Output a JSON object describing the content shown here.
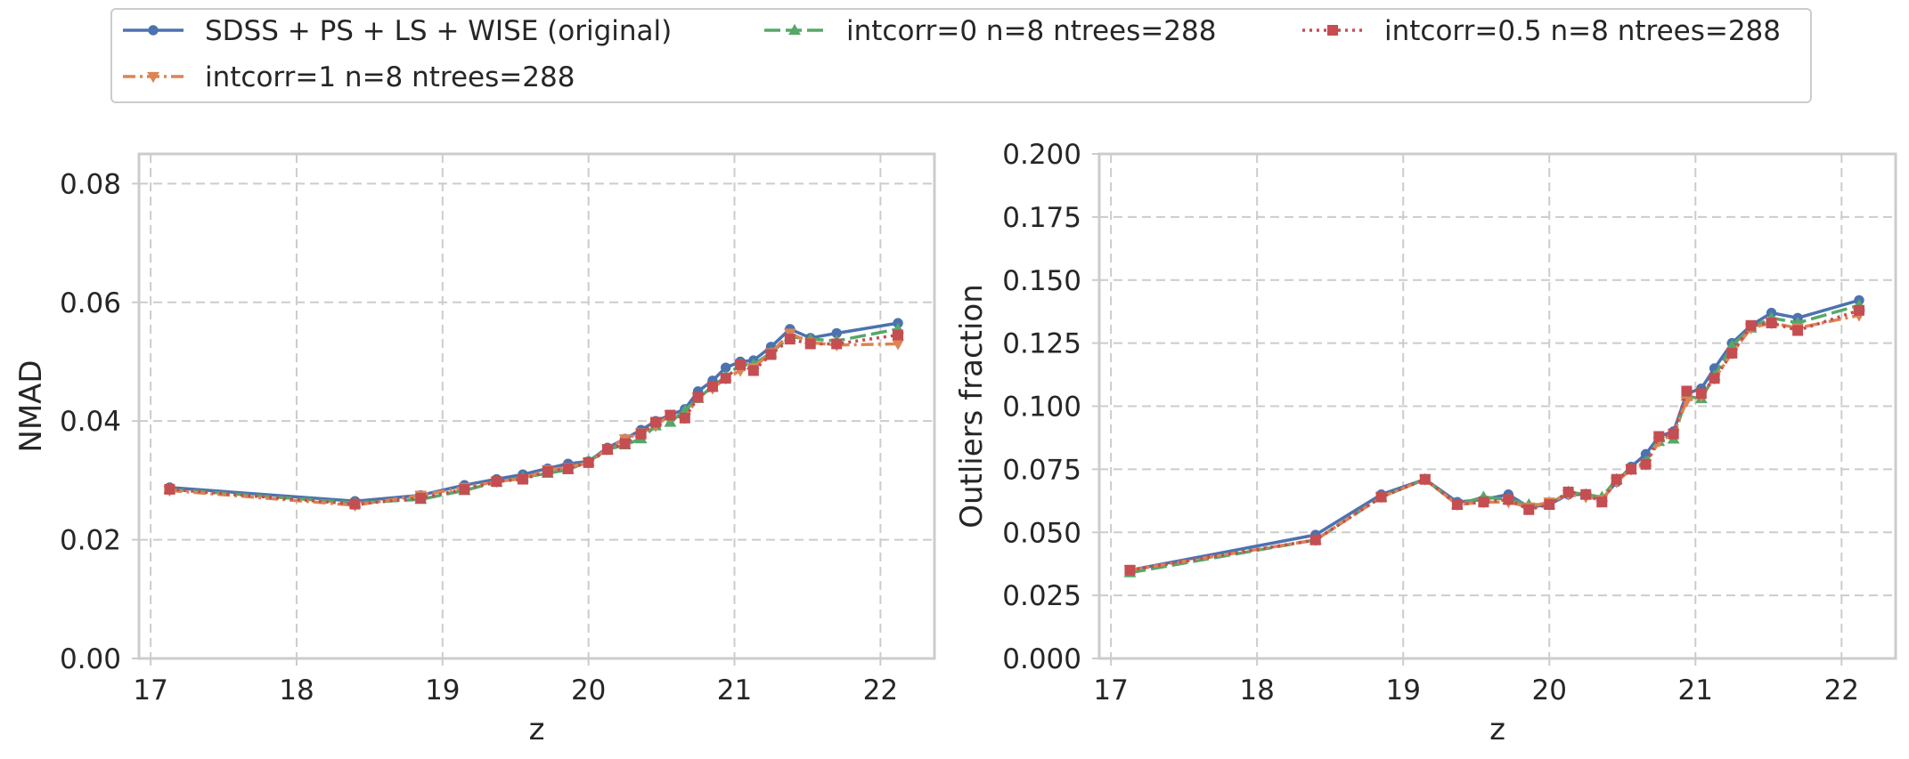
{
  "legend": {
    "entries": [
      {
        "label": "SDSS + PS + LS + WISE (original)",
        "series": 0
      },
      {
        "label": "intcorr=0 n=8 ntrees=288",
        "series": 1
      },
      {
        "label": "intcorr=0.5 n=8 ntrees=288",
        "series": 3
      },
      {
        "label": "intcorr=1 n=8 ntrees=288",
        "series": 2
      }
    ]
  },
  "series_styles": [
    {
      "color": "#4c72b0",
      "marker": "circle",
      "dash": "solid"
    },
    {
      "color": "#55a868",
      "marker": "triangle-up",
      "dash": "dash"
    },
    {
      "color": "#dd8452",
      "marker": "triangle-down",
      "dash": "dashdot"
    },
    {
      "color": "#c44e52",
      "marker": "square",
      "dash": "dot"
    }
  ],
  "chart_data": [
    {
      "type": "line",
      "xlabel": "z",
      "ylabel": "NMAD",
      "xlim": [
        16.92,
        22.37
      ],
      "ylim": [
        0.0,
        0.085
      ],
      "xticks": [
        "17",
        "18",
        "19",
        "20",
        "21",
        "22"
      ],
      "yticks": [
        "0.00",
        "0.02",
        "0.04",
        "0.06",
        "0.08"
      ],
      "grid": true,
      "x": [
        17.13,
        18.4,
        18.85,
        19.15,
        19.37,
        19.55,
        19.72,
        19.86,
        20.0,
        20.13,
        20.25,
        20.36,
        20.46,
        20.56,
        20.66,
        20.75,
        20.85,
        20.94,
        21.04,
        21.13,
        21.25,
        21.38,
        21.52,
        21.7,
        22.12
      ],
      "series": [
        {
          "name": "SDSS + PS + LS + WISE (original)",
          "values": [
            0.0288,
            0.0265,
            0.0275,
            0.0292,
            0.0302,
            0.031,
            0.032,
            0.0328,
            0.0332,
            0.0355,
            0.037,
            0.0385,
            0.04,
            0.041,
            0.042,
            0.045,
            0.0468,
            0.049,
            0.05,
            0.0502,
            0.0525,
            0.0555,
            0.054,
            0.0548,
            0.0565
          ]
        },
        {
          "name": "intcorr=0 n=8 ntrees=288",
          "values": [
            0.0285,
            0.0262,
            0.0268,
            0.0283,
            0.0297,
            0.0305,
            0.0312,
            0.0318,
            0.0332,
            0.0352,
            0.036,
            0.037,
            0.0392,
            0.0398,
            0.0418,
            0.0438,
            0.0458,
            0.0475,
            0.0495,
            0.0495,
            0.0515,
            0.0542,
            0.0538,
            0.0535,
            0.0555
          ]
        },
        {
          "name": "intcorr=1 n=8 ntrees=288",
          "values": [
            0.0283,
            0.0258,
            0.0275,
            0.0288,
            0.0298,
            0.0303,
            0.0318,
            0.0322,
            0.033,
            0.0353,
            0.037,
            0.038,
            0.0392,
            0.041,
            0.0405,
            0.044,
            0.0455,
            0.0472,
            0.0485,
            0.049,
            0.0515,
            0.0548,
            0.0532,
            0.0528,
            0.053
          ]
        },
        {
          "name": "intcorr=0.5 n=8 ntrees=288",
          "values": [
            0.0285,
            0.026,
            0.027,
            0.0285,
            0.0298,
            0.0302,
            0.0315,
            0.032,
            0.033,
            0.0352,
            0.0362,
            0.0378,
            0.0398,
            0.041,
            0.0405,
            0.044,
            0.0458,
            0.0472,
            0.0495,
            0.0485,
            0.0512,
            0.0538,
            0.053,
            0.053,
            0.0545
          ]
        }
      ]
    },
    {
      "type": "line",
      "xlabel": "z",
      "ylabel": "Outliers fraction",
      "xlim": [
        16.92,
        22.37
      ],
      "ylim": [
        0.0,
        0.2
      ],
      "xticks": [
        "17",
        "18",
        "19",
        "20",
        "21",
        "22"
      ],
      "yticks": [
        "0.000",
        "0.025",
        "0.050",
        "0.075",
        "0.100",
        "0.125",
        "0.150",
        "0.175",
        "0.200"
      ],
      "grid": true,
      "x": [
        17.13,
        18.4,
        18.85,
        19.15,
        19.37,
        19.55,
        19.72,
        19.86,
        20.0,
        20.13,
        20.25,
        20.36,
        20.46,
        20.56,
        20.66,
        20.75,
        20.85,
        20.94,
        21.04,
        21.13,
        21.25,
        21.38,
        21.52,
        21.7,
        22.12
      ],
      "series": [
        {
          "name": "SDSS + PS + LS + WISE (original)",
          "values": [
            0.035,
            0.049,
            0.065,
            0.071,
            0.062,
            0.063,
            0.065,
            0.06,
            0.061,
            0.065,
            0.065,
            0.063,
            0.07,
            0.076,
            0.081,
            0.088,
            0.09,
            0.105,
            0.107,
            0.115,
            0.125,
            0.132,
            0.137,
            0.135,
            0.142
          ]
        },
        {
          "name": "intcorr=0 n=8 ntrees=288",
          "values": [
            0.034,
            0.047,
            0.064,
            0.071,
            0.061,
            0.064,
            0.063,
            0.061,
            0.061,
            0.066,
            0.065,
            0.064,
            0.071,
            0.075,
            0.078,
            0.086,
            0.087,
            0.104,
            0.103,
            0.112,
            0.124,
            0.131,
            0.135,
            0.133,
            0.14
          ]
        },
        {
          "name": "intcorr=1 n=8 ntrees=288",
          "values": [
            0.035,
            0.047,
            0.064,
            0.071,
            0.061,
            0.062,
            0.062,
            0.06,
            0.062,
            0.065,
            0.064,
            0.063,
            0.07,
            0.075,
            0.077,
            0.086,
            0.089,
            0.102,
            0.104,
            0.111,
            0.121,
            0.131,
            0.133,
            0.131,
            0.136
          ]
        },
        {
          "name": "intcorr=0.5 n=8 ntrees=288",
          "values": [
            0.035,
            0.047,
            0.064,
            0.071,
            0.061,
            0.062,
            0.063,
            0.059,
            0.061,
            0.066,
            0.065,
            0.062,
            0.071,
            0.075,
            0.077,
            0.088,
            0.089,
            0.106,
            0.105,
            0.111,
            0.121,
            0.132,
            0.133,
            0.13,
            0.138
          ]
        }
      ]
    }
  ]
}
